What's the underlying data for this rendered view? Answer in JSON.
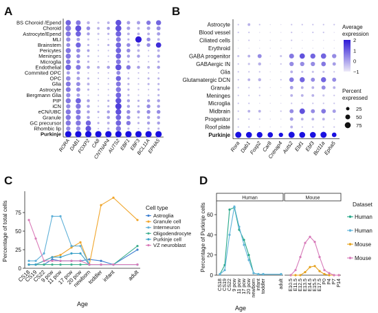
{
  "panels": {
    "A": {
      "label": "A"
    },
    "B": {
      "label": "B"
    },
    "C": {
      "label": "C"
    },
    "D": {
      "label": "D"
    }
  },
  "colors": {
    "dot_low": "#d9d6ee",
    "dot_high": "#2e1ad6",
    "purkinje_dot": "#1a10e0",
    "astroglia": "#3d7fd0",
    "granule": "#f0a52a",
    "interneuron": "#5fb0d8",
    "oligodendrocyte": "#3fae8e",
    "purkinje": "#3aa0c8",
    "vz": "#d97ab8",
    "human": "#26a889",
    "human_light": "#5fb3d9",
    "mouse": "#e5a11c",
    "mouse_light": "#d77ab9"
  },
  "chart_data": [
    {
      "panel": "A",
      "type": "heatmap",
      "rows": [
        "BS Choroid /Epend",
        "Choroid",
        "Astrocyte/Epend",
        "MLI",
        "Brainstem",
        "Pericytes",
        "Meninges",
        "Microglia",
        "Endothelial",
        "Commited OPC",
        "OPC",
        "Glia",
        "Astrocyte",
        "Bergmann Glia",
        "PIP",
        "iCN",
        "eCN/UBC",
        "Granule",
        "GC precursor",
        "Rhombic lip",
        "Purkinje"
      ],
      "columns": [
        "RORA",
        "DAB1",
        "FOXP2",
        "CA8",
        "CNTNAP4",
        "AUTS2",
        "EBF1",
        "EBF3",
        "BCL11A",
        "EPHA5"
      ],
      "expression": [
        [
          0.6,
          0.5,
          0.2,
          0.1,
          0.2,
          0.7,
          0.3,
          0.3,
          0.5,
          0.6
        ],
        [
          0.5,
          0.7,
          0.4,
          0.2,
          0.3,
          0.7,
          0.3,
          0.2,
          0.3,
          0.4
        ],
        [
          0.5,
          0.6,
          0.3,
          0.1,
          0.2,
          0.6,
          0.2,
          0.2,
          0.2,
          0.3
        ],
        [
          0.4,
          0.3,
          0.1,
          0.1,
          0.1,
          0.5,
          0.2,
          1.0,
          0.4,
          0.2
        ],
        [
          0.4,
          0.6,
          0.2,
          0.1,
          0.2,
          0.6,
          0.4,
          0.3,
          0.4,
          0.9
        ],
        [
          0.5,
          0.4,
          0.3,
          0.1,
          0.1,
          0.6,
          0.4,
          0.2,
          0.1,
          0.2
        ],
        [
          0.5,
          0.4,
          0.2,
          0.1,
          0.1,
          0.6,
          0.3,
          0.3,
          0.1,
          0.3
        ],
        [
          0.5,
          0.4,
          0.2,
          0.1,
          0.1,
          0.5,
          0.2,
          0.1,
          0.1,
          0.2
        ],
        [
          0.6,
          0.5,
          0.3,
          0.2,
          0.3,
          0.7,
          0.5,
          0.3,
          0.2,
          0.3
        ],
        [
          0.3,
          0.3,
          0.1,
          0.1,
          0.1,
          0.4,
          0.1,
          0.1,
          0.1,
          0.1
        ],
        [
          0.4,
          0.3,
          0.2,
          0.1,
          0.1,
          0.6,
          0.2,
          0.1,
          0.2,
          0.2
        ],
        [
          0.5,
          0.4,
          0.2,
          0.1,
          0.1,
          0.5,
          0.2,
          0.1,
          0.2,
          0.2
        ],
        [
          0.5,
          0.4,
          0.2,
          0.1,
          0.1,
          0.5,
          0.2,
          0.1,
          0.1,
          0.2
        ],
        [
          0.4,
          0.3,
          0.1,
          0.1,
          0.1,
          0.6,
          0.2,
          0.1,
          0.1,
          0.2
        ],
        [
          0.5,
          0.6,
          0.3,
          0.1,
          0.2,
          0.7,
          0.3,
          0.2,
          0.3,
          0.3
        ],
        [
          0.4,
          0.5,
          0.3,
          0.1,
          0.2,
          0.8,
          0.3,
          0.2,
          0.4,
          0.3
        ],
        [
          0.5,
          0.5,
          0.3,
          0.2,
          0.3,
          0.7,
          0.4,
          0.3,
          0.4,
          0.4
        ],
        [
          0.5,
          0.5,
          0.3,
          0.1,
          0.3,
          0.6,
          0.4,
          0.2,
          0.3,
          0.3
        ],
        [
          0.5,
          0.5,
          0.6,
          0.2,
          0.2,
          0.6,
          0.5,
          0.2,
          0.3,
          0.3
        ],
        [
          0.4,
          0.4,
          0.7,
          0.1,
          0.2,
          0.5,
          0.2,
          0.1,
          0.2,
          0.2
        ],
        [
          1.0,
          1.0,
          1.0,
          1.0,
          1.0,
          1.0,
          1.0,
          1.0,
          1.0,
          1.0
        ]
      ],
      "percent": [
        [
          60,
          50,
          20,
          10,
          15,
          70,
          25,
          25,
          40,
          55
        ],
        [
          65,
          75,
          30,
          15,
          20,
          75,
          25,
          15,
          25,
          35
        ],
        [
          55,
          60,
          20,
          10,
          10,
          65,
          15,
          15,
          15,
          25
        ],
        [
          40,
          25,
          10,
          5,
          5,
          50,
          10,
          85,
          30,
          15
        ],
        [
          35,
          55,
          10,
          5,
          10,
          60,
          30,
          20,
          30,
          60
        ],
        [
          55,
          35,
          15,
          5,
          5,
          60,
          30,
          15,
          5,
          15
        ],
        [
          55,
          30,
          10,
          5,
          5,
          60,
          20,
          20,
          5,
          20
        ],
        [
          45,
          25,
          10,
          5,
          5,
          50,
          10,
          5,
          5,
          10
        ],
        [
          65,
          50,
          20,
          15,
          20,
          75,
          40,
          20,
          15,
          20
        ],
        [
          25,
          20,
          5,
          5,
          5,
          35,
          5,
          5,
          5,
          5
        ],
        [
          45,
          25,
          10,
          5,
          5,
          55,
          10,
          5,
          10,
          10
        ],
        [
          50,
          35,
          15,
          5,
          5,
          50,
          10,
          5,
          10,
          10
        ],
        [
          50,
          35,
          10,
          5,
          5,
          55,
          10,
          5,
          5,
          10
        ],
        [
          40,
          25,
          5,
          5,
          5,
          60,
          10,
          5,
          5,
          10
        ],
        [
          55,
          60,
          20,
          5,
          10,
          70,
          20,
          10,
          20,
          20
        ],
        [
          40,
          55,
          20,
          5,
          10,
          80,
          20,
          10,
          30,
          20
        ],
        [
          55,
          50,
          20,
          10,
          20,
          70,
          30,
          20,
          30,
          30
        ],
        [
          55,
          50,
          20,
          5,
          20,
          60,
          30,
          10,
          20,
          20
        ],
        [
          55,
          55,
          55,
          10,
          15,
          60,
          40,
          10,
          20,
          20
        ],
        [
          40,
          40,
          65,
          5,
          10,
          55,
          10,
          5,
          10,
          10
        ],
        [
          85,
          85,
          85,
          85,
          85,
          85,
          85,
          85,
          85,
          85
        ]
      ]
    },
    {
      "panel": "B",
      "type": "heatmap",
      "rows": [
        "Astrocyte",
        "Blood vessel",
        "Ciliated cells",
        "Erythroid",
        "GABA progenitor",
        "GABAergic IN",
        "Glia",
        "Glutamatergic DCN",
        "Granule",
        "Meninges",
        "Microglia",
        "Midbrain",
        "Progenitor",
        "Roof plate",
        "Purkinje"
      ],
      "columns": [
        "Rora",
        "Dab1",
        "Foxp2",
        "Car8",
        "Cntnap4",
        "Auts2",
        "Ebf1",
        "Ebf3",
        "Bcl11a",
        "Epha5"
      ],
      "expression": [
        [
          0.1,
          0.2,
          0.1,
          0.0,
          0.0,
          0.1,
          0.1,
          0.1,
          0.1,
          0.1
        ],
        [
          0.1,
          0.1,
          0.0,
          0.0,
          0.0,
          0.1,
          0.0,
          0.1,
          0.1,
          0.0
        ],
        [
          0.0,
          0.1,
          0.0,
          0.0,
          0.0,
          0.1,
          0.0,
          0.0,
          0.0,
          0.0
        ],
        [
          0.0,
          0.0,
          0.0,
          0.0,
          0.0,
          0.0,
          0.0,
          0.0,
          0.0,
          0.0
        ],
        [
          0.1,
          0.2,
          0.4,
          0.0,
          0.1,
          0.5,
          0.7,
          0.6,
          0.6,
          0.4
        ],
        [
          0.1,
          0.1,
          0.2,
          0.0,
          0.1,
          0.4,
          0.4,
          0.4,
          0.5,
          0.3
        ],
        [
          0.1,
          0.1,
          0.1,
          0.0,
          0.0,
          0.2,
          0.1,
          0.1,
          0.1,
          0.1
        ],
        [
          0.1,
          0.2,
          0.2,
          0.0,
          0.1,
          0.5,
          0.6,
          0.4,
          0.6,
          0.4
        ],
        [
          0.1,
          0.1,
          0.1,
          0.0,
          0.0,
          0.3,
          0.2,
          0.2,
          0.4,
          0.2
        ],
        [
          0.1,
          0.1,
          0.1,
          0.0,
          0.0,
          0.2,
          0.2,
          0.2,
          0.1,
          0.1
        ],
        [
          0.1,
          0.1,
          0.0,
          0.0,
          0.0,
          0.1,
          0.1,
          0.1,
          0.1,
          0.1
        ],
        [
          0.1,
          0.2,
          0.2,
          0.0,
          0.1,
          0.4,
          0.7,
          0.4,
          0.5,
          0.3
        ],
        [
          0.1,
          0.1,
          0.1,
          0.0,
          0.0,
          0.3,
          0.2,
          0.2,
          0.2,
          0.1
        ],
        [
          0.1,
          0.1,
          0.0,
          0.0,
          0.0,
          0.2,
          0.1,
          0.1,
          0.1,
          0.1
        ],
        [
          1.0,
          1.0,
          1.0,
          0.9,
          0.6,
          1.0,
          1.0,
          1.0,
          1.0,
          0.7
        ]
      ],
      "percent": [
        [
          5,
          15,
          5,
          0,
          0,
          5,
          5,
          5,
          5,
          5
        ],
        [
          5,
          5,
          0,
          0,
          0,
          5,
          0,
          5,
          5,
          0
        ],
        [
          0,
          5,
          0,
          0,
          0,
          5,
          0,
          0,
          0,
          0
        ],
        [
          0,
          0,
          0,
          0,
          0,
          0,
          0,
          0,
          0,
          0
        ],
        [
          10,
          15,
          35,
          0,
          10,
          50,
          60,
          55,
          60,
          40
        ],
        [
          5,
          10,
          20,
          0,
          5,
          40,
          40,
          40,
          45,
          25
        ],
        [
          5,
          5,
          5,
          0,
          0,
          15,
          10,
          10,
          10,
          5
        ],
        [
          5,
          15,
          20,
          0,
          5,
          45,
          55,
          35,
          55,
          35
        ],
        [
          5,
          5,
          5,
          0,
          0,
          25,
          15,
          15,
          35,
          15
        ],
        [
          5,
          5,
          5,
          0,
          0,
          15,
          15,
          15,
          10,
          5
        ],
        [
          5,
          5,
          0,
          0,
          0,
          5,
          5,
          5,
          5,
          5
        ],
        [
          5,
          15,
          15,
          0,
          5,
          35,
          65,
          35,
          45,
          25
        ],
        [
          5,
          5,
          5,
          0,
          0,
          25,
          15,
          15,
          15,
          5
        ],
        [
          5,
          5,
          0,
          0,
          0,
          15,
          5,
          5,
          5,
          5
        ],
        [
          80,
          75,
          70,
          60,
          40,
          80,
          75,
          75,
          80,
          45
        ]
      ],
      "color_legend": {
        "title": "Average expression",
        "ticks": [
          2,
          1,
          0,
          -1
        ]
      },
      "size_legend": {
        "title": "Percent expressed",
        "values": [
          25,
          50,
          75
        ]
      }
    },
    {
      "panel": "C",
      "type": "line",
      "categories": [
        "CS18",
        "CS19",
        "CS22",
        "9 pcw",
        "11 pcw",
        "17 pcw",
        "20 pcw",
        "newborn",
        "toddler",
        "infant",
        "adult"
      ],
      "ylabel": "Percentage of total cells",
      "xlabel": "Age",
      "ylim": [
        0,
        100
      ],
      "yticks": [
        0,
        25,
        50,
        75
      ],
      "legend_title": "Cell type",
      "series": [
        {
          "name": "Astroglia",
          "values": [
            5,
            5,
            5,
            12,
            10,
            10,
            10,
            12,
            10,
            5,
            25
          ]
        },
        {
          "name": "Granule cell",
          "values": [
            5,
            5,
            10,
            15,
            18,
            28,
            35,
            5,
            85,
            95,
            65
          ]
        },
        {
          "name": "Interneuron",
          "values": [
            10,
            10,
            20,
            70,
            70,
            30,
            30,
            5,
            5,
            5,
            5
          ]
        },
        {
          "name": "Oligodendrocyte",
          "values": [
            5,
            5,
            5,
            5,
            5,
            5,
            5,
            5,
            5,
            5,
            30
          ]
        },
        {
          "name": "Purkinje cell",
          "values": [
            5,
            5,
            10,
            15,
            15,
            20,
            20,
            5,
            5,
            5,
            5
          ]
        },
        {
          "name": "VZ neuroblast",
          "values": [
            65,
            40,
            10,
            10,
            10,
            10,
            10,
            5,
            5,
            5,
            5
          ]
        }
      ]
    },
    {
      "panel": "D",
      "type": "line",
      "facets": [
        "Human",
        "Mouse"
      ],
      "ylabel": "Percentage of Purkinje cells",
      "xlabel": "Age",
      "ylim": [
        0,
        75
      ],
      "yticks": [
        0,
        20,
        40,
        60
      ],
      "legend_title": "Dataset",
      "legend_entries": [
        "Human",
        "Human",
        "Mouse",
        "Mouse"
      ],
      "human_categories": [
        "CS18",
        "CS19",
        "CS22",
        "9 pcw",
        "11 pcw",
        "17 pcw",
        "20 pcw",
        "newborn",
        "infant",
        "toddler",
        "adult"
      ],
      "mouse_categories": [
        "E10.5",
        "E11.5",
        "E12.5",
        "E13.5",
        "E14.5",
        "E15.5",
        "E17.5",
        "P0",
        "P4",
        "P7",
        "P14"
      ],
      "series": [
        {
          "facet": "Human",
          "values": [
            1,
            10,
            65,
            67,
            45,
            35,
            20,
            2,
            1,
            1,
            1
          ]
        },
        {
          "facet": "Human",
          "values": [
            1,
            5,
            40,
            68,
            48,
            30,
            15,
            2,
            1,
            1,
            1
          ]
        },
        {
          "facet": "Mouse",
          "values": [
            0,
            0,
            0,
            3,
            8,
            9,
            4,
            1,
            0,
            0,
            0
          ]
        },
        {
          "facet": "Mouse",
          "values": [
            0,
            5,
            18,
            32,
            38,
            33,
            18,
            5,
            2,
            0,
            0
          ]
        }
      ]
    }
  ]
}
